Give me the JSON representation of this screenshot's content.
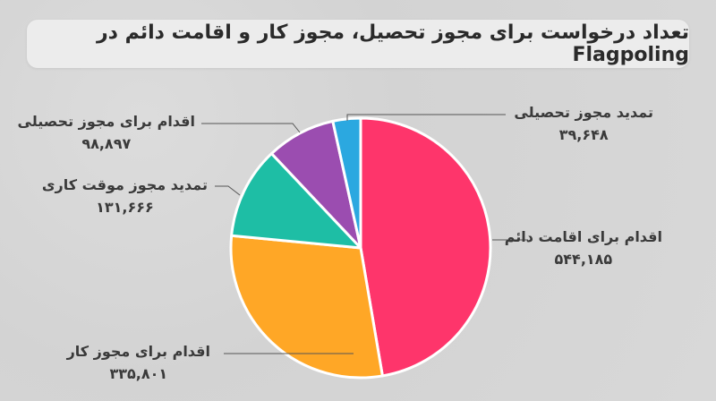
{
  "title": "تعداد درخواست برای مجوز تحصیل، مجوز کار و اقامت دائم در Flagpoling",
  "chart_data": {
    "type": "pie",
    "title": "تعداد درخواست برای مجوز تحصیل، مجوز کار و اقامت دائم در Flagpoling",
    "start": "top, clockwise",
    "slices": [
      {
        "label": "اقدام برای اقامت دائم",
        "value": 544185,
        "display": "۵۴۴,۱۸۵",
        "color": "#fe356b"
      },
      {
        "label": "اقدام برای مجوز کار",
        "value": 335801,
        "display": "۳۳۵,۸۰۱",
        "color": "#ffa726"
      },
      {
        "label": "تمدید مجوز موقت کاری",
        "value": 131666,
        "display": "۱۳۱,۶۶۶",
        "color": "#1ebea5"
      },
      {
        "label": "اقدام برای مجوز تحصیلی",
        "value": 98897,
        "display": "۹۸,۸۹۷",
        "color": "#9b4db0"
      },
      {
        "label": "تمدید مجوز تحصیلی",
        "value": 39648,
        "display": "۳۹,۶۴۸",
        "color": "#2ba8e0"
      }
    ]
  }
}
